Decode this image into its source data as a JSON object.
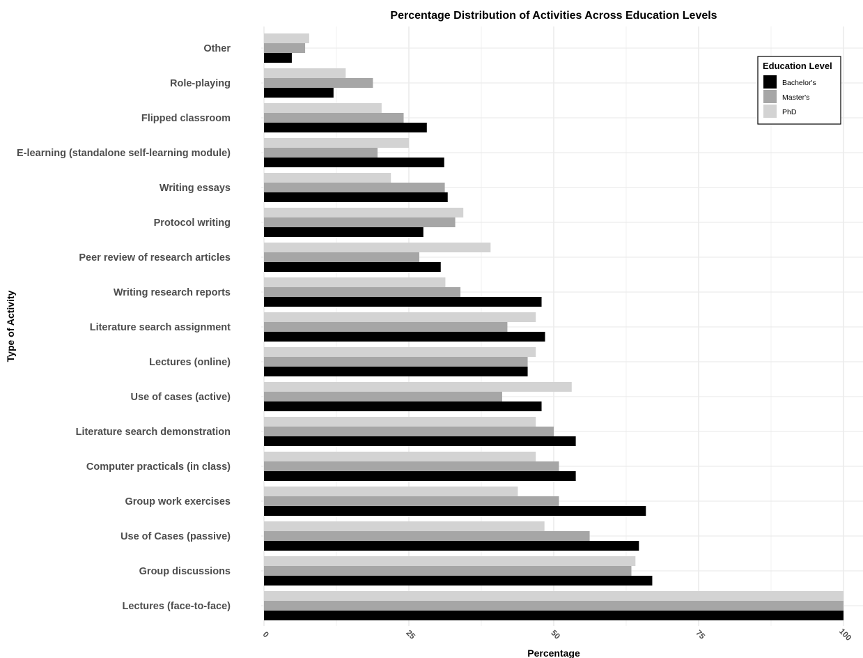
{
  "chart_data": {
    "type": "bar",
    "orientation": "horizontal",
    "title": "Percentage Distribution of Activities Across Education Levels",
    "xlabel": "Percentage",
    "ylabel": "Type of Activity",
    "xlim": [
      0,
      100
    ],
    "xticks": [
      "0",
      "25",
      "50",
      "75",
      "100"
    ],
    "grid": true,
    "legend": {
      "title": "Education Level",
      "position": "top-right"
    },
    "categories": [
      "Lectures (face-to-face)",
      "Group discussions",
      "Use of Cases (passive)",
      "Group work exercises",
      "Computer practicals (in class)",
      "Literature search demonstration",
      "Use of cases (active)",
      "Lectures (online)",
      "Literature search assignment",
      "Writing research reports",
      "Peer review of research articles",
      "Protocol writing",
      "Writing essays",
      "E-learning (standalone self-learning module)",
      "Flipped classroom",
      "Role-playing",
      "Other"
    ],
    "series": [
      {
        "name": "Bachelor's",
        "color": "#000000",
        "values": [
          100,
          67,
          64.7,
          65.9,
          53.8,
          53.8,
          47.9,
          45.5,
          48.5,
          47.9,
          30.5,
          27.5,
          31.7,
          31.1,
          28.1,
          12,
          4.8
        ]
      },
      {
        "name": "Master's",
        "color": "#a6a6a6",
        "values": [
          100,
          63.4,
          56.2,
          50.9,
          50.9,
          50,
          41.1,
          45.5,
          42,
          33.9,
          26.8,
          33,
          31.2,
          19.6,
          24.1,
          18.8,
          7.1
        ]
      },
      {
        "name": "PhD",
        "color": "#d3d3d3",
        "values": [
          100,
          64.1,
          48.4,
          43.8,
          46.9,
          46.9,
          53.1,
          46.9,
          46.9,
          31.3,
          39.1,
          34.4,
          21.9,
          25,
          20.3,
          14.1,
          7.8
        ]
      }
    ]
  }
}
